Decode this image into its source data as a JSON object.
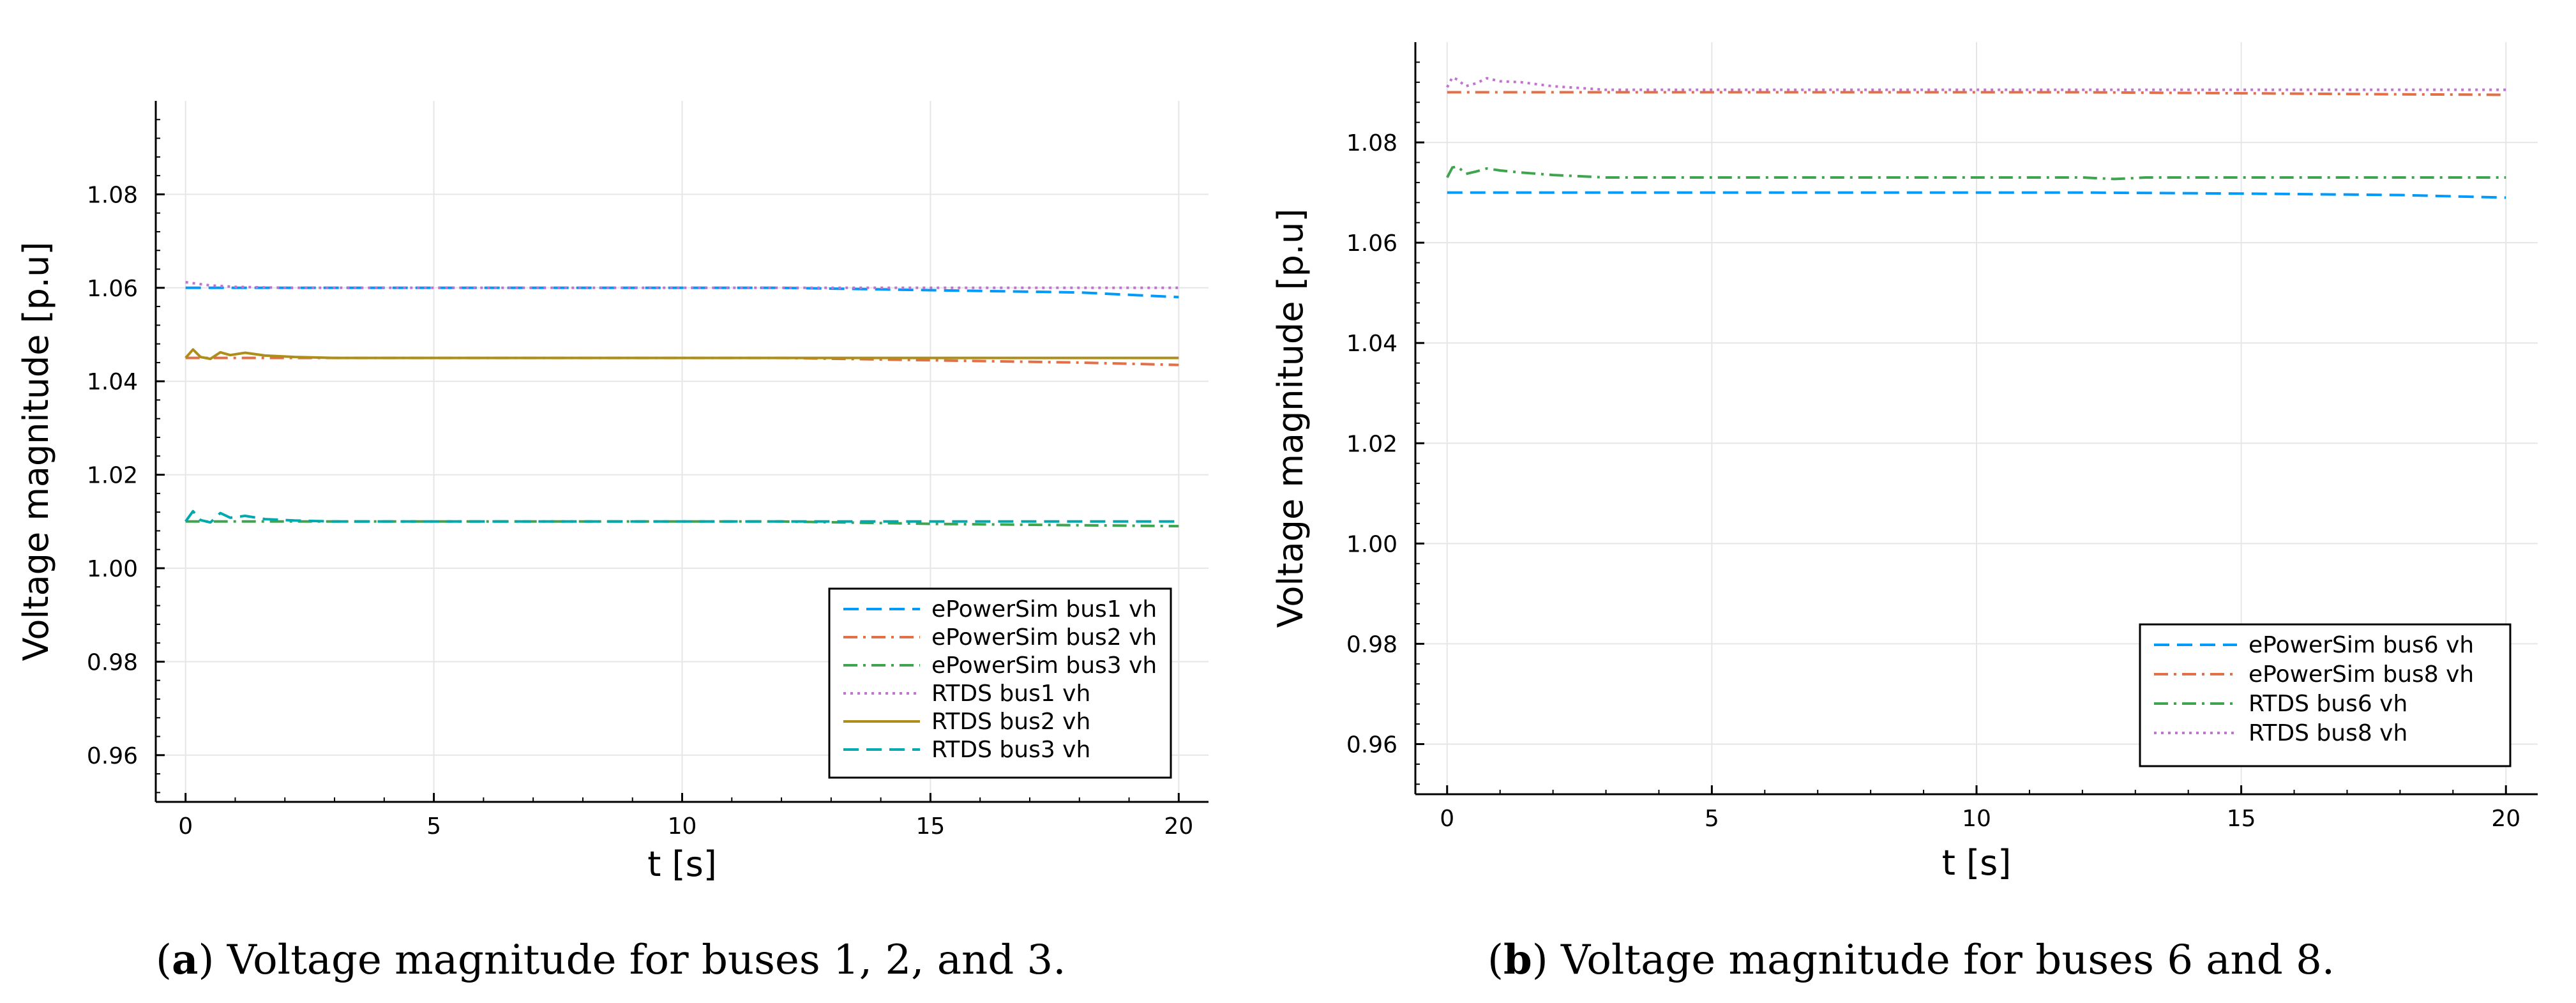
{
  "chart_data": [
    {
      "id": "a",
      "type": "line",
      "title": "",
      "xlabel": "t [s]",
      "ylabel": "Voltage magnitude [p.u]",
      "xlim": [
        -0.6,
        20.6
      ],
      "ylim": [
        0.95,
        1.1
      ],
      "xticks": [
        0,
        5,
        10,
        15,
        20
      ],
      "yticks": [
        0.96,
        0.98,
        1.0,
        1.02,
        1.04,
        1.06,
        1.08
      ],
      "ytick_labels": [
        "0.96",
        "0.98",
        "1.00",
        "1.02",
        "1.04",
        "1.06",
        "1.08"
      ],
      "grid": true,
      "legend_position": "bottom-right",
      "caption_label": "a",
      "caption": ") Voltage magnitude for buses 1, 2, and 3.",
      "series": [
        {
          "name": "ePowerSim bus1 vh",
          "color": "#009AFA",
          "dash": "dash",
          "x": [
            0,
            12,
            15,
            18,
            20
          ],
          "y": [
            1.06,
            1.06,
            1.0595,
            1.059,
            1.058
          ]
        },
        {
          "name": "ePowerSim bus2 vh",
          "color": "#E26F46",
          "dash": "dashdot",
          "x": [
            0,
            12,
            15,
            18,
            20
          ],
          "y": [
            1.045,
            1.045,
            1.0445,
            1.044,
            1.0435
          ]
        },
        {
          "name": "ePowerSim bus3 vh",
          "color": "#3EA44E",
          "dash": "dashdot",
          "x": [
            0,
            12,
            15,
            18,
            20
          ],
          "y": [
            1.01,
            1.01,
            1.0095,
            1.0092,
            1.009
          ]
        },
        {
          "name": "RTDS bus1 vh",
          "color": "#C371D2",
          "dash": "dot",
          "x": [
            0,
            0.5,
            1,
            2,
            4,
            20
          ],
          "y": [
            1.0612,
            1.0605,
            1.0602,
            1.06,
            1.06,
            1.06
          ]
        },
        {
          "name": "RTDS bus2 vh",
          "color": "#AC8E18",
          "dash": "solid",
          "x": [
            0,
            0.15,
            0.3,
            0.5,
            0.7,
            0.9,
            1.2,
            1.6,
            2.2,
            3,
            20
          ],
          "y": [
            1.045,
            1.0468,
            1.0452,
            1.0448,
            1.0462,
            1.0456,
            1.0461,
            1.0455,
            1.0452,
            1.045,
            1.045
          ]
        },
        {
          "name": "RTDS bus3 vh",
          "color": "#00A9AD",
          "dash": "dash",
          "x": [
            0,
            0.15,
            0.3,
            0.5,
            0.7,
            0.9,
            1.2,
            1.6,
            2.2,
            3,
            20
          ],
          "y": [
            1.01,
            1.0122,
            1.0103,
            1.0098,
            1.0118,
            1.0108,
            1.0112,
            1.0105,
            1.0102,
            1.01,
            1.01
          ]
        }
      ]
    },
    {
      "id": "b",
      "type": "line",
      "title": "",
      "xlabel": "t [s]",
      "ylabel": "Voltage magnitude [p.u]",
      "xlim": [
        -0.6,
        20.6
      ],
      "ylim": [
        0.95,
        1.1
      ],
      "xticks": [
        0,
        5,
        10,
        15,
        20
      ],
      "yticks": [
        0.96,
        0.98,
        1.0,
        1.02,
        1.04,
        1.06,
        1.08
      ],
      "ytick_labels": [
        "0.96",
        "0.98",
        "1.00",
        "1.02",
        "1.04",
        "1.06",
        "1.08"
      ],
      "grid": true,
      "legend_position": "bottom-right",
      "caption_label": "b",
      "caption": ") Voltage magnitude for buses 6 and 8.",
      "series": [
        {
          "name": "ePowerSim bus6 vh",
          "color": "#009AFA",
          "dash": "dash",
          "x": [
            0,
            12,
            15,
            18,
            20
          ],
          "y": [
            1.07,
            1.07,
            1.0698,
            1.0695,
            1.069
          ]
        },
        {
          "name": "ePowerSim bus8 vh",
          "color": "#E26F46",
          "dash": "dashdot",
          "x": [
            0,
            12,
            15,
            18,
            20
          ],
          "y": [
            1.09,
            1.09,
            1.0898,
            1.0896,
            1.0895
          ]
        },
        {
          "name": "RTDS bus6 vh",
          "color": "#3EA44E",
          "dash": "dashdot",
          "x": [
            0,
            0.1,
            0.2,
            0.35,
            0.55,
            0.75,
            1.0,
            1.4,
            2.0,
            3.0,
            12.0,
            12.6,
            13.2,
            20
          ],
          "y": [
            1.073,
            1.075,
            1.0752,
            1.0737,
            1.0742,
            1.0748,
            1.0744,
            1.074,
            1.0735,
            1.073,
            1.073,
            1.0727,
            1.073,
            1.073
          ]
        },
        {
          "name": "RTDS bus8 vh",
          "color": "#C371D2",
          "dash": "dot",
          "x": [
            0,
            0.1,
            0.2,
            0.35,
            0.55,
            0.75,
            1.0,
            1.4,
            2.0,
            3.0,
            20
          ],
          "y": [
            1.091,
            1.093,
            1.0925,
            1.0912,
            1.0918,
            1.0928,
            1.0922,
            1.092,
            1.0912,
            1.0905,
            1.0905
          ]
        }
      ]
    }
  ]
}
